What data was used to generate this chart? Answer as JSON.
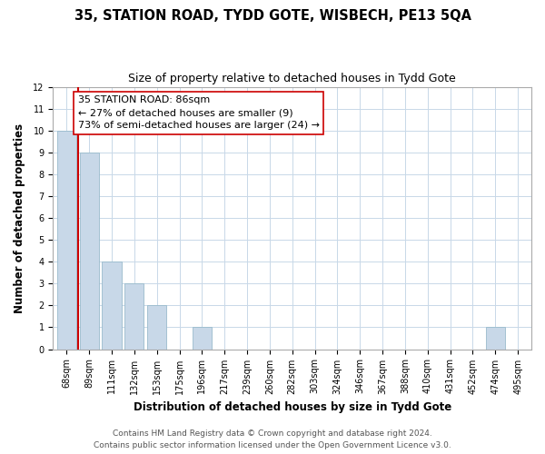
{
  "title": "35, STATION ROAD, TYDD GOTE, WISBECH, PE13 5QA",
  "subtitle": "Size of property relative to detached houses in Tydd Gote",
  "xlabel": "Distribution of detached houses by size in Tydd Gote",
  "ylabel": "Number of detached properties",
  "bins": [
    "68sqm",
    "89sqm",
    "111sqm",
    "132sqm",
    "153sqm",
    "175sqm",
    "196sqm",
    "217sqm",
    "239sqm",
    "260sqm",
    "282sqm",
    "303sqm",
    "324sqm",
    "346sqm",
    "367sqm",
    "388sqm",
    "410sqm",
    "431sqm",
    "452sqm",
    "474sqm",
    "495sqm"
  ],
  "values": [
    10,
    9,
    4,
    3,
    2,
    0,
    1,
    0,
    0,
    0,
    0,
    0,
    0,
    0,
    0,
    0,
    0,
    0,
    0,
    1,
    0
  ],
  "bar_color": "#c8d8e8",
  "bar_edge_color": "#99bbcc",
  "vline_x": 0.5,
  "vline_color": "#cc0000",
  "annotation_title": "35 STATION ROAD: 86sqm",
  "annotation_line1": "← 27% of detached houses are smaller (9)",
  "annotation_line2": "73% of semi-detached houses are larger (24) →",
  "annotation_box_facecolor": "#ffffff",
  "annotation_box_edgecolor": "#cc0000",
  "ylim": [
    0,
    12
  ],
  "yticks": [
    0,
    1,
    2,
    3,
    4,
    5,
    6,
    7,
    8,
    9,
    10,
    11,
    12
  ],
  "footer1": "Contains HM Land Registry data © Crown copyright and database right 2024.",
  "footer2": "Contains public sector information licensed under the Open Government Licence v3.0.",
  "background_color": "#ffffff",
  "grid_color": "#c8d8e8",
  "title_fontsize": 10.5,
  "subtitle_fontsize": 9,
  "axis_label_fontsize": 8.5,
  "tick_fontsize": 7,
  "annotation_fontsize": 8,
  "footer_fontsize": 6.5
}
